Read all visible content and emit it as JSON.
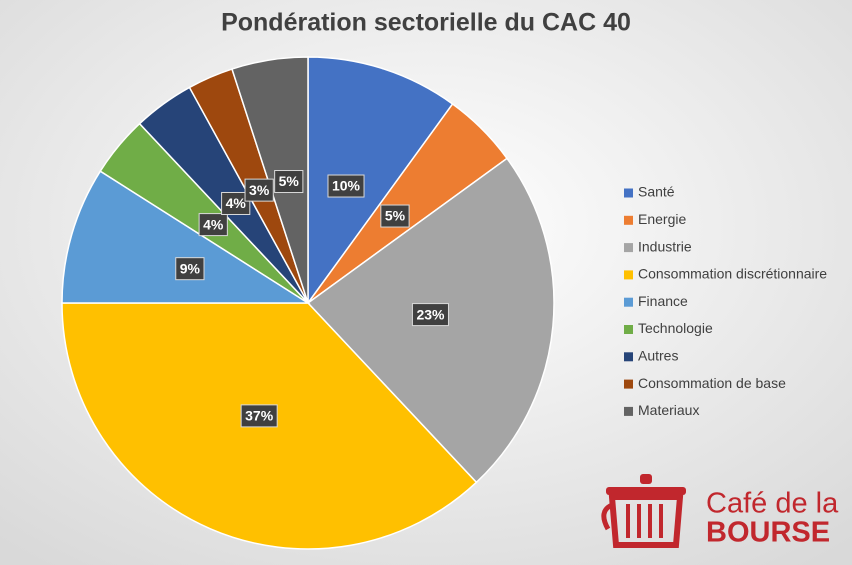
{
  "chart_data": {
    "type": "pie",
    "title": "Pondération sectorielle du CAC 40",
    "categories": [
      "Santé",
      "Energie",
      "Industrie",
      "Consommation discrétionnaire",
      "Finance",
      "Technologie",
      "Autres",
      "Consommation de base",
      "Materiaux"
    ],
    "values": [
      10,
      5,
      23,
      37,
      9,
      4,
      4,
      3,
      5
    ],
    "value_labels": [
      "10%",
      "5%",
      "23%",
      "37%",
      "9%",
      "4%",
      "4%",
      "3%",
      "5%"
    ],
    "colors": [
      "#4472c4",
      "#ed7d31",
      "#a5a5a5",
      "#ffc000",
      "#5b9bd5",
      "#70ad47",
      "#264478",
      "#9e480e",
      "#636363"
    ],
    "legend": "right"
  },
  "logo": {
    "line1": "Café de la",
    "line2": "BOURSE"
  }
}
